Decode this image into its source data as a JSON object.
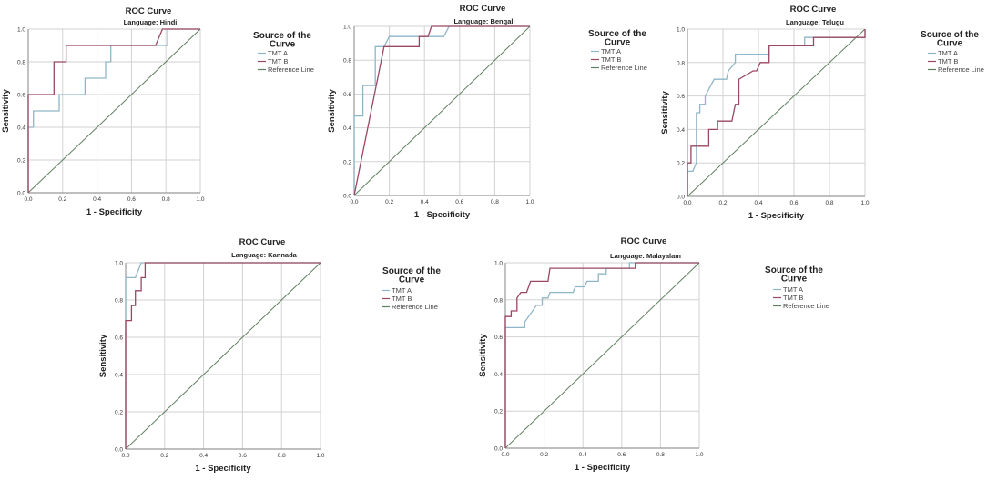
{
  "colors": {
    "TMT A": "#8fb6c8",
    "TMT B": "#9a4862",
    "Reference Line": "#5f8060",
    "grid": "#d2d2d2"
  },
  "chart_data": [
    {
      "type": "line",
      "title": "ROC Curve",
      "subtitle": "Language: Hindi",
      "xlabel": "1 - Specificity",
      "ylabel": "Sensitivity",
      "xlim": [
        0,
        1
      ],
      "ylim": [
        0,
        1
      ],
      "grid": true,
      "legend_placement": "right",
      "xticks": [
        "0.0",
        "0.2",
        "0.4",
        "0.6",
        "0.8",
        "1.0"
      ],
      "yticks": [
        "0.0",
        "0.2",
        "0.4",
        "0.6",
        "0.8",
        "1.0"
      ],
      "legend_title": "Source of the Curve",
      "series": [
        {
          "name": "TMT A",
          "points": [
            [
              0,
              0
            ],
            [
              0,
              0.4
            ],
            [
              0.03,
              0.4
            ],
            [
              0.03,
              0.5
            ],
            [
              0.18,
              0.5
            ],
            [
              0.18,
              0.6
            ],
            [
              0.33,
              0.6
            ],
            [
              0.33,
              0.7
            ],
            [
              0.45,
              0.7
            ],
            [
              0.45,
              0.8
            ],
            [
              0.48,
              0.8
            ],
            [
              0.48,
              0.9
            ],
            [
              0.81,
              0.9
            ],
            [
              0.81,
              1
            ],
            [
              1,
              1
            ]
          ]
        },
        {
          "name": "TMT B",
          "points": [
            [
              0,
              0
            ],
            [
              0,
              0.6
            ],
            [
              0.15,
              0.6
            ],
            [
              0.15,
              0.8
            ],
            [
              0.22,
              0.8
            ],
            [
              0.22,
              0.9
            ],
            [
              0.74,
              0.9
            ],
            [
              0.78,
              1
            ],
            [
              1,
              1
            ]
          ]
        },
        {
          "name": "Reference Line",
          "points": [
            [
              0,
              0
            ],
            [
              1,
              1
            ]
          ]
        }
      ]
    },
    {
      "type": "line",
      "title": "ROC Curve",
      "subtitle": "Language: Bengali",
      "xlabel": "1 - Specificity",
      "ylabel": "Sensitivity",
      "xlim": [
        0,
        1
      ],
      "ylim": [
        0,
        1
      ],
      "grid": true,
      "legend_placement": "right",
      "xticks": [
        "0.0",
        "0.2",
        "0.4",
        "0.6",
        "0.8",
        "1.0"
      ],
      "yticks": [
        "0.0",
        "0.2",
        "0.4",
        "0.6",
        "0.8",
        "1.0"
      ],
      "legend_title": "Source of the Curve",
      "series": [
        {
          "name": "TMT A",
          "points": [
            [
              0,
              0
            ],
            [
              0,
              0.47
            ],
            [
              0.05,
              0.47
            ],
            [
              0.05,
              0.65
            ],
            [
              0.12,
              0.65
            ],
            [
              0.12,
              0.88
            ],
            [
              0.17,
              0.88
            ],
            [
              0.2,
              0.94
            ],
            [
              0.51,
              0.94
            ],
            [
              0.54,
              1
            ],
            [
              1,
              1
            ]
          ]
        },
        {
          "name": "TMT B",
          "points": [
            [
              0,
              0
            ],
            [
              0.17,
              0.88
            ],
            [
              0.37,
              0.88
            ],
            [
              0.37,
              0.94
            ],
            [
              0.42,
              0.94
            ],
            [
              0.44,
              1
            ],
            [
              1,
              1
            ]
          ]
        },
        {
          "name": "Reference Line",
          "points": [
            [
              0,
              0
            ],
            [
              1,
              1
            ]
          ]
        }
      ]
    },
    {
      "type": "line",
      "title": "ROC Curve",
      "subtitle": "Language: Telugu",
      "xlabel": "1 - Specificity",
      "ylabel": "Sensitivity",
      "xlim": [
        0,
        1
      ],
      "ylim": [
        0,
        1
      ],
      "grid": true,
      "legend_placement": "right",
      "xticks": [
        "0.0",
        "0.2",
        "0.4",
        "0.6",
        "0.8",
        "1.0"
      ],
      "yticks": [
        "0.0",
        "0.2",
        "0.4",
        "0.6",
        "0.8",
        "1.0"
      ],
      "legend_title": "Source of the Curve",
      "series": [
        {
          "name": "TMT A",
          "points": [
            [
              0,
              0
            ],
            [
              0,
              0.15
            ],
            [
              0.03,
              0.15
            ],
            [
              0.05,
              0.2
            ],
            [
              0.05,
              0.5
            ],
            [
              0.07,
              0.5
            ],
            [
              0.07,
              0.55
            ],
            [
              0.1,
              0.55
            ],
            [
              0.1,
              0.6
            ],
            [
              0.15,
              0.7
            ],
            [
              0.22,
              0.7
            ],
            [
              0.23,
              0.75
            ],
            [
              0.27,
              0.8
            ],
            [
              0.27,
              0.85
            ],
            [
              0.46,
              0.85
            ],
            [
              0.46,
              0.9
            ],
            [
              0.66,
              0.9
            ],
            [
              0.66,
              0.95
            ],
            [
              1,
              0.95
            ],
            [
              1,
              1
            ]
          ]
        },
        {
          "name": "TMT B",
          "points": [
            [
              0,
              0
            ],
            [
              0,
              0.2
            ],
            [
              0.02,
              0.2
            ],
            [
              0.02,
              0.3
            ],
            [
              0.12,
              0.3
            ],
            [
              0.12,
              0.4
            ],
            [
              0.17,
              0.4
            ],
            [
              0.17,
              0.45
            ],
            [
              0.25,
              0.45
            ],
            [
              0.27,
              0.55
            ],
            [
              0.29,
              0.55
            ],
            [
              0.29,
              0.7
            ],
            [
              0.37,
              0.75
            ],
            [
              0.39,
              0.75
            ],
            [
              0.41,
              0.8
            ],
            [
              0.46,
              0.8
            ],
            [
              0.46,
              0.9
            ],
            [
              0.71,
              0.9
            ],
            [
              0.71,
              0.95
            ],
            [
              1,
              0.95
            ],
            [
              1,
              1
            ]
          ]
        },
        {
          "name": "Reference Line",
          "points": [
            [
              0,
              0
            ],
            [
              1,
              1
            ]
          ]
        }
      ]
    },
    {
      "type": "line",
      "title": "ROC Curve",
      "subtitle": "Language: Kannada",
      "xlabel": "1 - Specificity",
      "ylabel": "Sensitivity",
      "xlim": [
        0,
        1
      ],
      "ylim": [
        0,
        1
      ],
      "grid": true,
      "legend_placement": "right",
      "xticks": [
        "0.0",
        "0.2",
        "0.4",
        "0.6",
        "0.8",
        "1.0"
      ],
      "yticks": [
        "0.0",
        "0.2",
        "0.4",
        "0.6",
        "0.8",
        "1.0"
      ],
      "legend_title": "Source of the Curve",
      "series": [
        {
          "name": "TMT A",
          "points": [
            [
              0,
              0
            ],
            [
              0,
              0.92
            ],
            [
              0.05,
              0.92
            ],
            [
              0.08,
              1
            ],
            [
              1,
              1
            ]
          ]
        },
        {
          "name": "TMT B",
          "points": [
            [
              0,
              0
            ],
            [
              0,
              0.69
            ],
            [
              0.03,
              0.69
            ],
            [
              0.03,
              0.77
            ],
            [
              0.05,
              0.77
            ],
            [
              0.05,
              0.85
            ],
            [
              0.08,
              0.85
            ],
            [
              0.08,
              0.92
            ],
            [
              0.1,
              0.92
            ],
            [
              0.1,
              1
            ],
            [
              1,
              1
            ]
          ]
        },
        {
          "name": "Reference Line",
          "points": [
            [
              0,
              0
            ],
            [
              1,
              1
            ]
          ]
        }
      ]
    },
    {
      "type": "line",
      "title": "ROC Curve",
      "subtitle": "Language: Malayalam",
      "xlabel": "1 - Specificity",
      "ylabel": "Sensitivity",
      "xlim": [
        0,
        1
      ],
      "ylim": [
        0,
        1
      ],
      "grid": true,
      "legend_placement": "right",
      "xticks": [
        "0.0",
        "0.2",
        "0.4",
        "0.6",
        "0.8",
        "1.0"
      ],
      "yticks": [
        "0.0",
        "0.2",
        "0.4",
        "0.6",
        "0.8",
        "1.0"
      ],
      "legend_title": "Source of the Curve",
      "series": [
        {
          "name": "TMT A",
          "points": [
            [
              0,
              0
            ],
            [
              0,
              0.65
            ],
            [
              0.1,
              0.65
            ],
            [
              0.1,
              0.68
            ],
            [
              0.16,
              0.77
            ],
            [
              0.19,
              0.77
            ],
            [
              0.19,
              0.81
            ],
            [
              0.22,
              0.81
            ],
            [
              0.23,
              0.84
            ],
            [
              0.35,
              0.84
            ],
            [
              0.36,
              0.87
            ],
            [
              0.41,
              0.87
            ],
            [
              0.42,
              0.9
            ],
            [
              0.48,
              0.9
            ],
            [
              0.48,
              0.94
            ],
            [
              0.52,
              0.94
            ],
            [
              0.52,
              0.97
            ],
            [
              0.64,
              0.97
            ],
            [
              0.64,
              1
            ],
            [
              1,
              1
            ]
          ]
        },
        {
          "name": "TMT B",
          "points": [
            [
              0,
              0
            ],
            [
              0,
              0.71
            ],
            [
              0.03,
              0.71
            ],
            [
              0.03,
              0.74
            ],
            [
              0.06,
              0.74
            ],
            [
              0.06,
              0.81
            ],
            [
              0.08,
              0.84
            ],
            [
              0.11,
              0.84
            ],
            [
              0.13,
              0.9
            ],
            [
              0.22,
              0.9
            ],
            [
              0.23,
              0.97
            ],
            [
              0.67,
              0.97
            ],
            [
              0.67,
              1
            ],
            [
              1,
              1
            ]
          ]
        },
        {
          "name": "Reference Line",
          "points": [
            [
              0,
              0
            ],
            [
              1,
              1
            ]
          ]
        }
      ]
    }
  ]
}
